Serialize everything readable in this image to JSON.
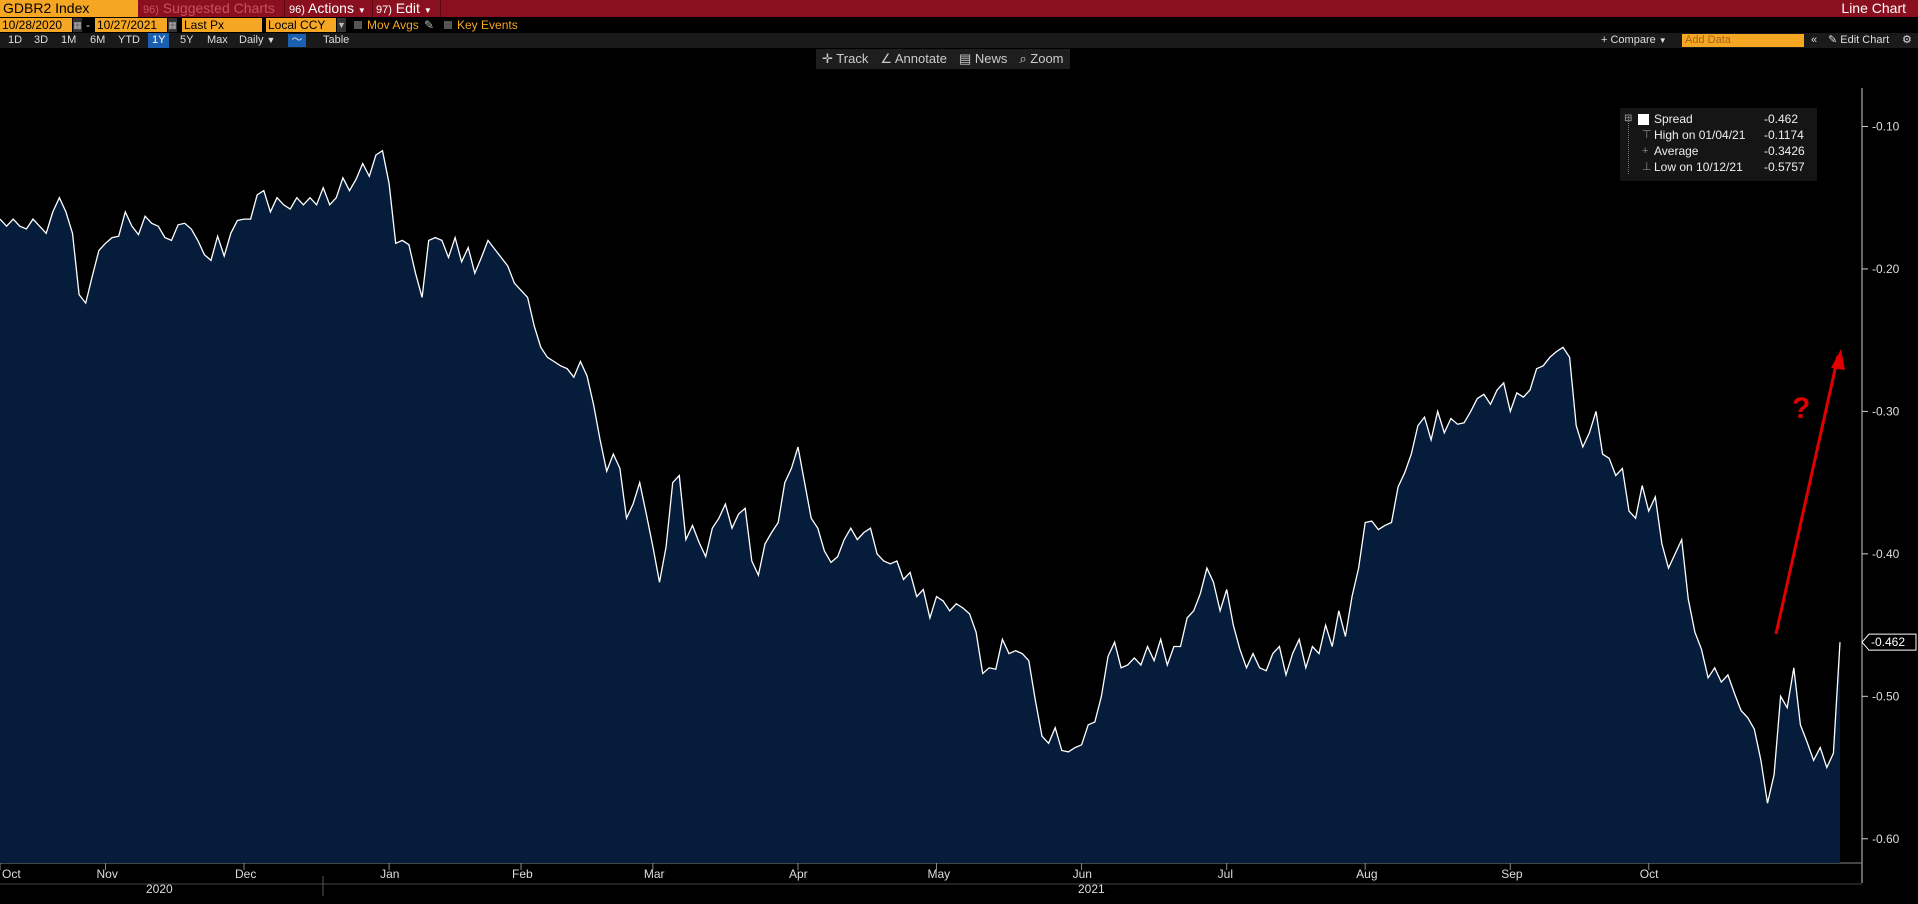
{
  "header": {
    "ticker": "GDBR2 Index",
    "suggested_num": "96)",
    "suggested_label": "Suggested Charts",
    "actions_num": "96)",
    "actions_label": "Actions",
    "edit_num": "97)",
    "edit_label": "Edit",
    "chart_type": "Line Chart"
  },
  "controls": {
    "start_date": "10/28/2020",
    "date_sep": "-",
    "end_date": "10/27/2021",
    "field": "Last Px",
    "currency": "Local CCY",
    "mov_avgs": "Mov Avgs",
    "key_events": "Key Events"
  },
  "timeframes": [
    "1D",
    "3D",
    "1M",
    "6M",
    "YTD",
    "1Y",
    "5Y",
    "Max"
  ],
  "active_timeframe": "1Y",
  "periodicity": "Daily",
  "table_label": "Table",
  "compare_label": "+ Compare",
  "add_data_placeholder": "Add Data",
  "edit_chart_label": "Edit Chart",
  "tools": [
    "Track",
    "Annotate",
    "News",
    "Zoom"
  ],
  "legend": {
    "spread_label": "Spread",
    "spread_value": "-0.462",
    "high_label": "High on 01/04/21",
    "high_value": "-0.1174",
    "avg_label": "Average",
    "avg_value": "-0.3426",
    "low_label": "Low on 10/12/21",
    "low_value": "-0.5757"
  },
  "annotation": {
    "question_mark": "?",
    "color": "#e00000"
  },
  "colors": {
    "area_fill": "#051d3b",
    "line": "#ffffff",
    "bg": "#000000",
    "accent": "#f5a623",
    "topbar": "#8a1020"
  },
  "chart_data": {
    "type": "area",
    "series": [
      {
        "name": "Spread",
        "values": [
          -0.165,
          -0.17,
          -0.165,
          -0.17,
          -0.172,
          -0.165,
          -0.17,
          -0.175,
          -0.16,
          -0.15,
          -0.16,
          -0.175,
          -0.218,
          -0.224,
          -0.205,
          -0.187,
          -0.182,
          -0.178,
          -0.177,
          -0.16,
          -0.17,
          -0.176,
          -0.163,
          -0.168,
          -0.17,
          -0.178,
          -0.18,
          -0.169,
          -0.168,
          -0.172,
          -0.18,
          -0.19,
          -0.194,
          -0.177,
          -0.191,
          -0.175,
          -0.166,
          -0.165,
          -0.165,
          -0.148,
          -0.145,
          -0.16,
          -0.15,
          -0.155,
          -0.158,
          -0.15,
          -0.155,
          -0.15,
          -0.155,
          -0.143,
          -0.155,
          -0.15,
          -0.136,
          -0.145,
          -0.137,
          -0.126,
          -0.135,
          -0.12,
          -0.117,
          -0.14,
          -0.182,
          -0.18,
          -0.183,
          -0.203,
          -0.22,
          -0.18,
          -0.178,
          -0.18,
          -0.192,
          -0.178,
          -0.195,
          -0.185,
          -0.203,
          -0.192,
          -0.18,
          -0.186,
          -0.192,
          -0.198,
          -0.21,
          -0.215,
          -0.22,
          -0.24,
          -0.255,
          -0.262,
          -0.265,
          -0.268,
          -0.27,
          -0.276,
          -0.265,
          -0.275,
          -0.295,
          -0.32,
          -0.342,
          -0.33,
          -0.34,
          -0.375,
          -0.365,
          -0.35,
          -0.372,
          -0.395,
          -0.42,
          -0.395,
          -0.35,
          -0.345,
          -0.39,
          -0.38,
          -0.392,
          -0.402,
          -0.382,
          -0.375,
          -0.365,
          -0.382,
          -0.372,
          -0.368,
          -0.405,
          -0.415,
          -0.393,
          -0.385,
          -0.378,
          -0.35,
          -0.34,
          -0.325,
          -0.35,
          -0.375,
          -0.382,
          -0.398,
          -0.406,
          -0.402,
          -0.39,
          -0.382,
          -0.39,
          -0.385,
          -0.382,
          -0.4,
          -0.405,
          -0.407,
          -0.405,
          -0.418,
          -0.413,
          -0.43,
          -0.425,
          -0.445,
          -0.43,
          -0.433,
          -0.44,
          -0.435,
          -0.438,
          -0.442,
          -0.455,
          -0.484,
          -0.48,
          -0.481,
          -0.46,
          -0.47,
          -0.468,
          -0.47,
          -0.475,
          -0.503,
          -0.528,
          -0.533,
          -0.522,
          -0.538,
          -0.539,
          -0.536,
          -0.534,
          -0.52,
          -0.518,
          -0.5,
          -0.472,
          -0.462,
          -0.48,
          -0.478,
          -0.473,
          -0.478,
          -0.465,
          -0.475,
          -0.46,
          -0.478,
          -0.465,
          -0.465,
          -0.445,
          -0.44,
          -0.428,
          -0.41,
          -0.42,
          -0.44,
          -0.425,
          -0.45,
          -0.467,
          -0.48,
          -0.47,
          -0.48,
          -0.482,
          -0.47,
          -0.465,
          -0.485,
          -0.47,
          -0.46,
          -0.48,
          -0.465,
          -0.47,
          -0.45,
          -0.465,
          -0.44,
          -0.458,
          -0.43,
          -0.41,
          -0.378,
          -0.377,
          -0.383,
          -0.38,
          -0.378,
          -0.353,
          -0.343,
          -0.33,
          -0.31,
          -0.304,
          -0.32,
          -0.3,
          -0.315,
          -0.305,
          -0.309,
          -0.308,
          -0.3,
          -0.291,
          -0.288,
          -0.295,
          -0.285,
          -0.28,
          -0.3,
          -0.287,
          -0.29,
          -0.285,
          -0.27,
          -0.268,
          -0.262,
          -0.258,
          -0.255,
          -0.262,
          -0.31,
          -0.325,
          -0.315,
          -0.3,
          -0.33,
          -0.333,
          -0.345,
          -0.34,
          -0.37,
          -0.375,
          -0.352,
          -0.37,
          -0.36,
          -0.393,
          -0.41,
          -0.4,
          -0.39,
          -0.432,
          -0.455,
          -0.467,
          -0.487,
          -0.48,
          -0.49,
          -0.485,
          -0.498,
          -0.51,
          -0.515,
          -0.523,
          -0.545,
          -0.575,
          -0.555,
          -0.5,
          -0.508,
          -0.48,
          -0.52,
          -0.532,
          -0.545,
          -0.536,
          -0.55,
          -0.54,
          -0.462
        ]
      }
    ],
    "x_labels": [
      "Oct",
      "Nov",
      "Dec",
      "Jan",
      "Feb",
      "Mar",
      "Apr",
      "May",
      "Jun",
      "Jul",
      "Aug",
      "Sep",
      "Oct"
    ],
    "year_labels": [
      "2020",
      "2021"
    ],
    "y_ticks": [
      -0.1,
      -0.2,
      -0.3,
      -0.4,
      -0.5,
      -0.6
    ],
    "y_tick_labels": [
      "-0.10",
      "-0.20",
      "-0.30",
      "-0.40",
      "-0.50",
      "-0.60"
    ],
    "ylim": [
      -0.617,
      -0.073
    ],
    "last_value_label": "-0.462",
    "grid": false,
    "legend_position": "top-right"
  }
}
